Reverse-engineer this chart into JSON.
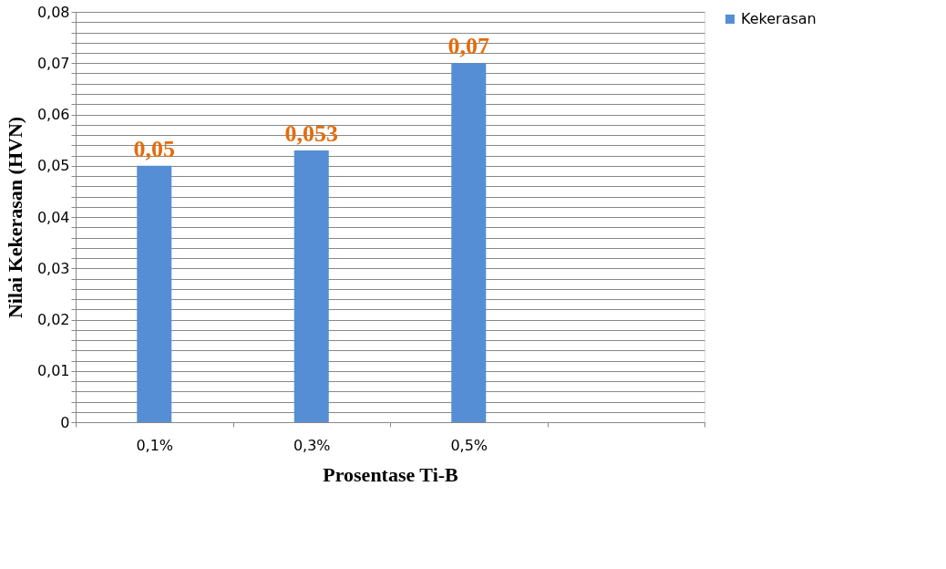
{
  "chart_data": {
    "type": "bar",
    "xlabel": "Prosentase Ti-B",
    "ylabel": "Nilai  Kekerasan (HVN)",
    "categories": [
      "0,1%",
      "0,3%",
      "0,5%",
      null
    ],
    "series": [
      {
        "name": "Kekerasan",
        "color": "#558ed5",
        "values": [
          0.05,
          0.053,
          0.07,
          null
        ],
        "value_labels": [
          "0,05",
          "0,053",
          "0,07",
          null
        ]
      }
    ],
    "ylim": [
      0,
      0.08
    ],
    "yticks": [
      0,
      {
        "value": 0.002,
        "label": null
      },
      {
        "value": 0.004,
        "label": null
      },
      {
        "value": 0.006,
        "label": null
      },
      {
        "value": 0.008,
        "label": null
      },
      {
        "value": 0.01,
        "label": "0,01"
      },
      {
        "value": 0.012,
        "label": null
      },
      {
        "value": 0.014,
        "label": null
      },
      {
        "value": 0.016,
        "label": null
      },
      {
        "value": 0.018,
        "label": null
      },
      {
        "value": 0.02,
        "label": "0,02"
      },
      {
        "value": 0.022,
        "label": null
      },
      {
        "value": 0.024,
        "label": null
      },
      {
        "value": 0.026,
        "label": null
      },
      {
        "value": 0.028,
        "label": null
      },
      {
        "value": 0.03,
        "label": "0,03"
      },
      {
        "value": 0.032,
        "label": null
      },
      {
        "value": 0.034,
        "label": null
      },
      {
        "value": 0.036,
        "label": null
      },
      {
        "value": 0.038,
        "label": null
      },
      {
        "value": 0.04,
        "label": "0,04"
      },
      {
        "value": 0.042,
        "label": null
      },
      {
        "value": 0.044,
        "label": null
      },
      {
        "value": 0.046,
        "label": null
      },
      {
        "value": 0.048,
        "label": null
      },
      {
        "value": 0.05,
        "label": "0,05"
      },
      {
        "value": 0.052,
        "label": null
      },
      {
        "value": 0.054,
        "label": null
      },
      {
        "value": 0.056,
        "label": null
      },
      {
        "value": 0.058,
        "label": null
      },
      {
        "value": 0.06,
        "label": "0,06"
      },
      {
        "value": 0.062,
        "label": null
      },
      {
        "value": 0.064,
        "label": null
      },
      {
        "value": 0.066,
        "label": null
      },
      {
        "value": 0.068,
        "label": null
      },
      {
        "value": 0.07,
        "label": "0,07"
      },
      {
        "value": 0.072,
        "label": null
      },
      {
        "value": 0.074,
        "label": null
      },
      {
        "value": 0.076,
        "label": null
      },
      {
        "value": 0.078,
        "label": null
      },
      {
        "value": 0.08,
        "label": "0,08"
      }
    ],
    "grid": true,
    "legend": "right"
  }
}
